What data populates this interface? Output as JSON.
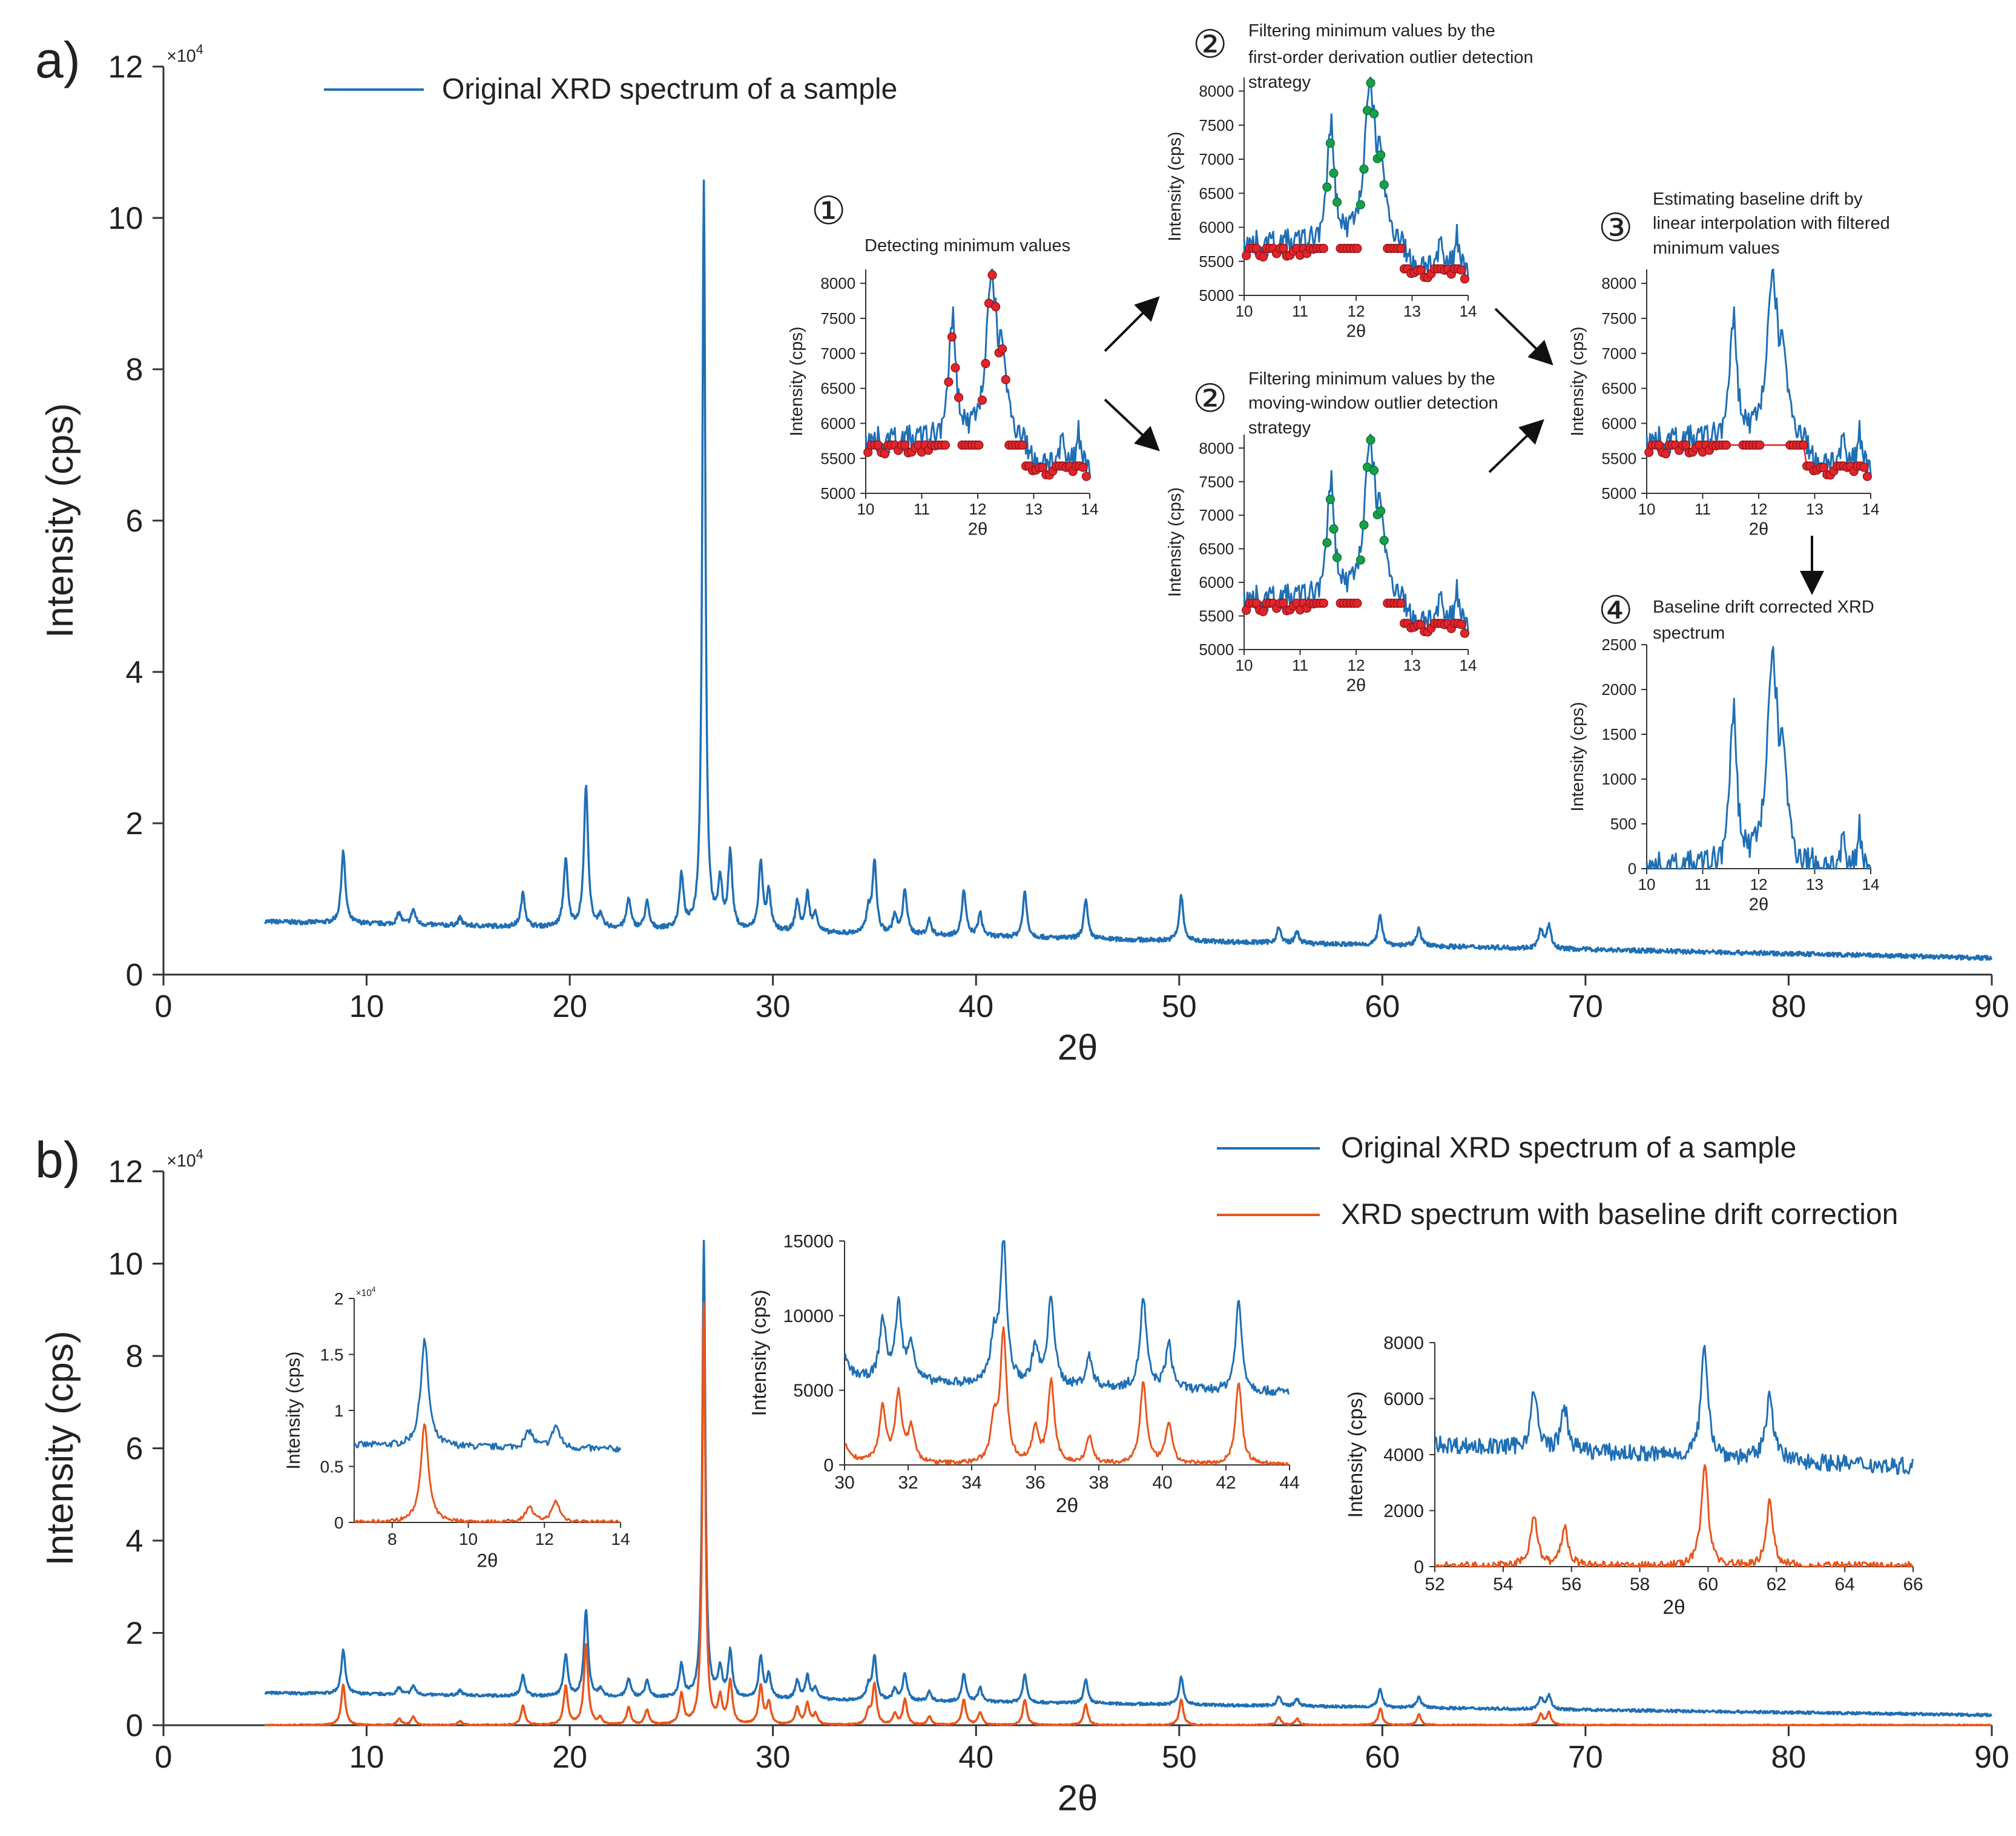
{
  "panels": {
    "a": {
      "label": "a)"
    },
    "b": {
      "label": "b)"
    }
  },
  "colors": {
    "original": "#1f6fb4",
    "corrected": "#e8551c",
    "minima": "#e0252b",
    "retained": "#16a04a",
    "axis": "#333333"
  },
  "step_labels": {
    "s1": {
      "number": "①",
      "lines": [
        "Detecting minimum values"
      ]
    },
    "s2a": {
      "number": "②",
      "lines": [
        "Filtering minimum values by the",
        "first-order derivation outlier detection",
        "strategy"
      ]
    },
    "s2b": {
      "number": "②",
      "lines": [
        "Filtering minimum values by the",
        "moving-window outlier detection",
        "strategy"
      ]
    },
    "s3": {
      "number": "③",
      "lines": [
        "Estimating baseline drift by",
        "linear interpolation with filtered",
        "minimum values"
      ]
    },
    "s4": {
      "number": "④",
      "lines": [
        "Baseline drift corrected XRD",
        "spectrum"
      ]
    }
  },
  "chart_data": [
    {
      "id": "a_main",
      "type": "line",
      "xlabel": "2θ",
      "ylabel": "Intensity (cps)",
      "xlim": [
        0,
        90
      ],
      "ylim": [
        0,
        12
      ],
      "xticks": [
        "0",
        "10",
        "20",
        "30",
        "40",
        "50",
        "60",
        "70",
        "80",
        "90"
      ],
      "yticks": [
        "0",
        "2",
        "4",
        "6",
        "8",
        "10",
        "12"
      ],
      "y_multiplier": "×10^4",
      "legend": [
        "Original XRD spectrum of a sample"
      ],
      "series": [
        {
          "name": "Original XRD spectrum of a sample",
          "kind": "original",
          "x_range": [
            5,
            90
          ],
          "baseline_start": 0.7,
          "baseline_end": 0.22,
          "peaks": [
            [
              8.85,
              0.95
            ],
            [
              11.6,
              0.15
            ],
            [
              12.3,
              0.2
            ],
            [
              14.6,
              0.1
            ],
            [
              17.7,
              0.45
            ],
            [
              19.8,
              0.9
            ],
            [
              20.8,
              1.9
            ],
            [
              21.5,
              0.15
            ],
            [
              22.9,
              0.4
            ],
            [
              23.8,
              0.35
            ],
            [
              25.5,
              0.7
            ],
            [
              26.6,
              9.9
            ],
            [
              27.4,
              0.6
            ],
            [
              27.9,
              1.0
            ],
            [
              29.4,
              0.9
            ],
            [
              29.8,
              0.5
            ],
            [
              31.2,
              0.4
            ],
            [
              31.7,
              0.5
            ],
            [
              32.1,
              0.25
            ],
            [
              34.7,
              0.3
            ],
            [
              35.0,
              0.95
            ],
            [
              36.0,
              0.25
            ],
            [
              36.5,
              0.6
            ],
            [
              37.7,
              0.2
            ],
            [
              39.4,
              0.6
            ],
            [
              40.2,
              0.3
            ],
            [
              42.4,
              0.6
            ],
            [
              45.4,
              0.5
            ],
            [
              50.1,
              0.6
            ],
            [
              54.9,
              0.2
            ],
            [
              55.8,
              0.15
            ],
            [
              59.9,
              0.4
            ],
            [
              61.8,
              0.25
            ],
            [
              67.8,
              0.25
            ],
            [
              68.2,
              0.3
            ]
          ]
        }
      ]
    },
    {
      "id": "inset_s1",
      "type": "scatter",
      "xlabel": "2θ",
      "ylabel": "Intensity (cps)",
      "xlim": [
        10,
        14
      ],
      "ylim": [
        5000,
        8200
      ],
      "xticks": [
        "10",
        "11",
        "12",
        "13",
        "14"
      ],
      "yticks": [
        "5000",
        "5500",
        "6000",
        "6500",
        "7000",
        "7500",
        "8000"
      ],
      "series": [
        {
          "name": "spectrum",
          "kind": "zoom"
        },
        {
          "name": "minimum values",
          "kind": "minima_all"
        }
      ]
    },
    {
      "id": "inset_s2a",
      "type": "scatter",
      "xlabel": "2θ",
      "ylabel": "Intensity (cps)",
      "xlim": [
        10,
        14
      ],
      "ylim": [
        5000,
        8200
      ],
      "xticks": [
        "10",
        "11",
        "12",
        "13",
        "14"
      ],
      "yticks": [
        "5000",
        "5500",
        "6000",
        "6500",
        "7000",
        "7500",
        "8000"
      ],
      "series": [
        {
          "name": "spectrum",
          "kind": "zoom"
        },
        {
          "name": "filtered minima",
          "kind": "minima_filtered"
        }
      ]
    },
    {
      "id": "inset_s2b",
      "type": "scatter",
      "xlabel": "2θ",
      "ylabel": "Intensity (cps)",
      "xlim": [
        10,
        14
      ],
      "ylim": [
        5000,
        8200
      ],
      "xticks": [
        "10",
        "11",
        "12",
        "13",
        "14"
      ],
      "yticks": [
        "5000",
        "5500",
        "6000",
        "6500",
        "7000",
        "7500",
        "8000"
      ],
      "series": [
        {
          "name": "spectrum",
          "kind": "zoom"
        },
        {
          "name": "filtered minima",
          "kind": "minima_filtered"
        }
      ]
    },
    {
      "id": "inset_s3",
      "type": "line",
      "xlabel": "2θ",
      "ylabel": "Intensity (cps)",
      "xlim": [
        10,
        14
      ],
      "ylim": [
        5000,
        8200
      ],
      "xticks": [
        "10",
        "11",
        "12",
        "13",
        "14"
      ],
      "yticks": [
        "5000",
        "5500",
        "6000",
        "6500",
        "7000",
        "7500",
        "8000"
      ],
      "series": [
        {
          "name": "spectrum",
          "kind": "zoom"
        },
        {
          "name": "baseline",
          "kind": "baseline"
        }
      ]
    },
    {
      "id": "inset_s4",
      "type": "line",
      "xlabel": "2θ",
      "ylabel": "Intensity (cps)",
      "xlim": [
        10,
        14
      ],
      "ylim": [
        0,
        2500
      ],
      "xticks": [
        "10",
        "11",
        "12",
        "13",
        "14"
      ],
      "yticks": [
        "0",
        "500",
        "1000",
        "1500",
        "2000",
        "2500"
      ],
      "series": [
        {
          "name": "corrected",
          "kind": "zoom_corrected"
        }
      ]
    },
    {
      "id": "b_main",
      "type": "line",
      "xlabel": "2θ",
      "ylabel": "Intensity (cps)",
      "xlim": [
        0,
        90
      ],
      "ylim": [
        0,
        12
      ],
      "xticks": [
        "0",
        "10",
        "20",
        "30",
        "40",
        "50",
        "60",
        "70",
        "80",
        "90"
      ],
      "yticks": [
        "0",
        "2",
        "4",
        "6",
        "8",
        "10",
        "12"
      ],
      "y_multiplier": "×10^4",
      "legend": [
        "Original XRD spectrum of a sample",
        "XRD spectrum with baseline drift correction"
      ],
      "series": [
        {
          "name": "Original XRD spectrum of a sample",
          "kind": "original"
        },
        {
          "name": "XRD spectrum with baseline drift correction",
          "kind": "corrected"
        }
      ]
    },
    {
      "id": "b_inset1",
      "type": "line",
      "xlabel": "2θ",
      "ylabel": "Intensity (cps)",
      "xlim": [
        7,
        14
      ],
      "ylim": [
        0,
        2
      ],
      "xticks": [
        "8",
        "10",
        "12",
        "14"
      ],
      "yticks": [
        "0",
        "0.5",
        "1",
        "1.5",
        "2"
      ],
      "y_multiplier": "×10^4",
      "series": [
        {
          "name": "original",
          "kind": "original"
        },
        {
          "name": "corrected",
          "kind": "corrected"
        }
      ]
    },
    {
      "id": "b_inset2",
      "type": "line",
      "xlabel": "2θ",
      "ylabel": "Intensity (cps)",
      "xlim": [
        30,
        44
      ],
      "ylim": [
        0,
        15000
      ],
      "xticks": [
        "30",
        "32",
        "34",
        "36",
        "38",
        "40",
        "42",
        "44"
      ],
      "yticks": [
        "0",
        "5000",
        "10000",
        "15000"
      ],
      "series": [
        {
          "name": "original",
          "kind": "original"
        },
        {
          "name": "corrected",
          "kind": "corrected"
        }
      ]
    },
    {
      "id": "b_inset3",
      "type": "line",
      "xlabel": "2θ",
      "ylabel": "Intensity (cps)",
      "xlim": [
        52,
        66
      ],
      "ylim": [
        0,
        8000
      ],
      "xticks": [
        "52",
        "54",
        "56",
        "58",
        "60",
        "62",
        "64",
        "66"
      ],
      "yticks": [
        "0",
        "2000",
        "4000",
        "6000",
        "8000"
      ],
      "series": [
        {
          "name": "original",
          "kind": "original"
        },
        {
          "name": "corrected",
          "kind": "corrected"
        }
      ]
    }
  ]
}
